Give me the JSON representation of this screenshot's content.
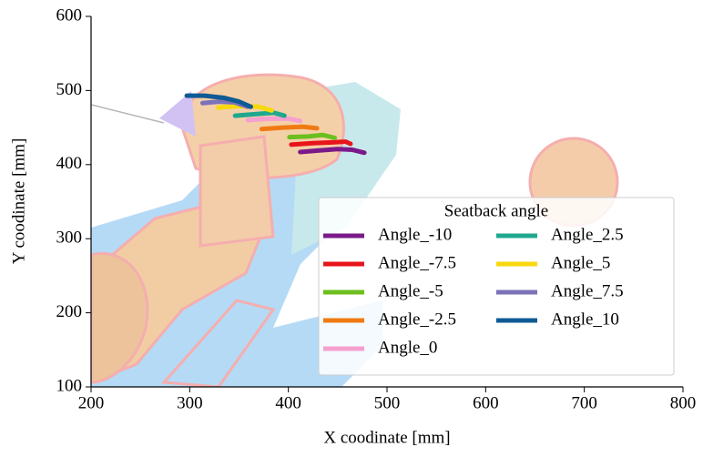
{
  "chart_data": {
    "type": "line",
    "xlabel": "X coodinate [mm]",
    "ylabel": "Y coodinate [mm]",
    "xlim": [
      200,
      800
    ],
    "ylim": [
      100,
      600
    ],
    "xticks": [
      200,
      300,
      400,
      500,
      600,
      700,
      800
    ],
    "yticks": [
      100,
      200,
      300,
      400,
      500,
      600
    ],
    "legend_title": "Seatback angle",
    "legend_loc": "lower right",
    "legend_columns": 2,
    "series": [
      {
        "name": "Angle_-10",
        "color": "#7a1a8a",
        "x": [
          412,
          430,
          450,
          465,
          477
        ],
        "y": [
          417,
          419,
          421,
          420,
          416
        ]
      },
      {
        "name": "Angle_-7.5",
        "color": "#e8141a",
        "x": [
          403,
          425,
          445,
          458,
          463
        ],
        "y": [
          427,
          429,
          430,
          431,
          428
        ]
      },
      {
        "name": "Angle_-5",
        "color": "#6cbf1e",
        "x": [
          401,
          420,
          435,
          447
        ],
        "y": [
          437,
          438,
          440,
          436
        ]
      },
      {
        "name": "Angle_-2.5",
        "color": "#f07a12",
        "x": [
          373,
          395,
          415,
          429
        ],
        "y": [
          448,
          450,
          451,
          449
        ]
      },
      {
        "name": "Angle_0",
        "color": "#f5a0cf",
        "x": [
          359,
          380,
          400,
          412
        ],
        "y": [
          460,
          462,
          462,
          459
        ]
      },
      {
        "name": "Angle_2.5",
        "color": "#1fa88e",
        "x": [
          346,
          365,
          385,
          396
        ],
        "y": [
          466,
          468,
          470,
          466
        ]
      },
      {
        "name": "Angle_5",
        "color": "#f8d80c",
        "x": [
          329,
          350,
          370,
          383
        ],
        "y": [
          477,
          479,
          478,
          473
        ]
      },
      {
        "name": "Angle_7.5",
        "color": "#7b72b8",
        "x": [
          313,
          330,
          345,
          359
        ],
        "y": [
          483,
          485,
          484,
          478
        ]
      },
      {
        "name": "Angle_10",
        "color": "#0f5a94",
        "x": [
          297,
          315,
          335,
          350,
          362
        ],
        "y": [
          493,
          493,
          490,
          485,
          478
        ]
      }
    ]
  }
}
